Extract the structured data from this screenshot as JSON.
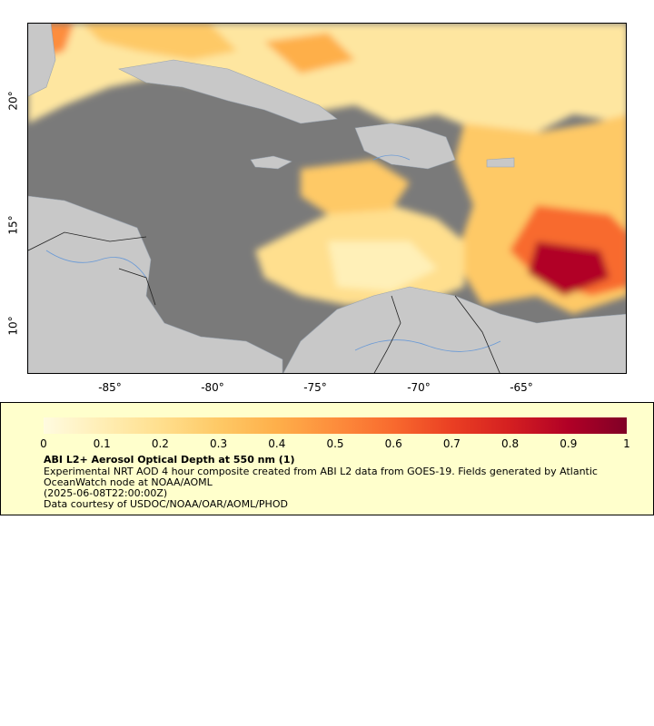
{
  "axes": {
    "y_ticks": [
      "20°",
      "15°",
      "10°"
    ],
    "x_ticks": [
      "-85°",
      "-80°",
      "-75°",
      "-70°",
      "-65°"
    ]
  },
  "colorbar": {
    "ticks": [
      "0",
      "0.1",
      "0.2",
      "0.3",
      "0.4",
      "0.5",
      "0.6",
      "0.7",
      "0.8",
      "0.9",
      "1"
    ],
    "colors": [
      "#fffbe0",
      "#ffeeb5",
      "#ffdf8e",
      "#fec966",
      "#feaf4a",
      "#fd8d3c",
      "#f86a2e",
      "#ea3f23",
      "#d41f21",
      "#b10026",
      "#800026"
    ]
  },
  "legend": {
    "title": "ABI L2+ Aerosol Optical Depth at 550 nm (1)",
    "line1": "Experimental NRT AOD 4 hour composite created from ABI L2 data from GOES-19. Fields generated by Atlantic",
    "line2": "OceanWatch node at NOAA/AOML",
    "line3": "(2025-06-08T22:00:00Z)",
    "line4": "Data courtesy of USDOC/NOAA/OAR/AOML/PHOD"
  },
  "map": {
    "ocean_color": "#7a7a7a",
    "land_color": "#c8c8c8",
    "river_color": "#6a9ad6",
    "border_color": "#222222"
  }
}
